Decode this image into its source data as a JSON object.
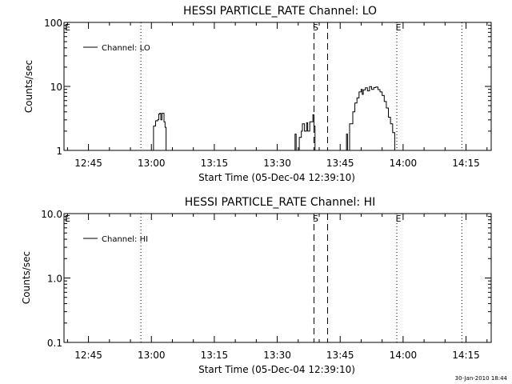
{
  "chart_data": [
    {
      "type": "line",
      "title": "HESSI PARTICLE_RATE Channel: LO",
      "xlabel": "Start Time (05-Dec-04 12:39:10)",
      "ylabel": "Counts/sec",
      "yscale": "log",
      "ylim": [
        1,
        100
      ],
      "yticks": [
        "1",
        "10",
        "100"
      ],
      "xlim": [
        "12:39:10",
        "14:21:00"
      ],
      "xticks": [
        "12:45",
        "13:00",
        "13:15",
        "13:30",
        "13:45",
        "14:00",
        "14:15"
      ],
      "grid": false,
      "legend_position": "top-left",
      "series": [
        {
          "name": "Channel: LO",
          "points": [
            [
              "13:00:15",
              1.0
            ],
            [
              "13:00:30",
              2.4
            ],
            [
              "13:01:00",
              2.9
            ],
            [
              "13:01:30",
              3.0
            ],
            [
              "13:01:45",
              3.7
            ],
            [
              "13:02:00",
              3.8
            ],
            [
              "13:02:15",
              3.0
            ],
            [
              "13:02:30",
              3.8
            ],
            [
              "13:03:00",
              2.8
            ],
            [
              "13:03:15",
              2.3
            ],
            [
              "13:03:30",
              1.0
            ]
          ]
        },
        {
          "name": "",
          "points": [
            [
              "13:34:00",
              1.0
            ],
            [
              "13:34:15",
              1.8
            ],
            [
              "13:34:30",
              1.0
            ],
            [
              "13:35:15",
              1.6
            ],
            [
              "13:35:45",
              2.0
            ],
            [
              "13:36:00",
              2.6
            ],
            [
              "13:36:30",
              2.0
            ],
            [
              "13:37:00",
              2.7
            ],
            [
              "13:37:15",
              2.0
            ],
            [
              "13:37:45",
              2.8
            ],
            [
              "13:38:30",
              3.6
            ],
            [
              "13:38:45",
              2.4
            ],
            [
              "13:39:00",
              1.0
            ]
          ]
        },
        {
          "name": "",
          "points": [
            [
              "13:46:15",
              1.0
            ],
            [
              "13:46:30",
              1.8
            ],
            [
              "13:46:45",
              1.0
            ],
            [
              "13:47:15",
              2.6
            ],
            [
              "13:48:00",
              4.0
            ],
            [
              "13:48:30",
              5.5
            ],
            [
              "13:49:00",
              6.6
            ],
            [
              "13:49:30",
              8.2
            ],
            [
              "13:50:00",
              9.0
            ],
            [
              "13:50:15",
              7.5
            ],
            [
              "13:50:30",
              8.8
            ],
            [
              "13:51:00",
              9.5
            ],
            [
              "13:51:30",
              8.5
            ],
            [
              "13:52:00",
              9.9
            ],
            [
              "13:52:30",
              9.0
            ],
            [
              "13:53:00",
              9.6
            ],
            [
              "13:53:30",
              9.8
            ],
            [
              "13:54:00",
              8.9
            ],
            [
              "13:54:30",
              8.2
            ],
            [
              "13:55:00",
              7.2
            ],
            [
              "13:55:30",
              5.8
            ],
            [
              "13:56:00",
              4.6
            ],
            [
              "13:56:30",
              3.3
            ],
            [
              "13:57:00",
              2.6
            ],
            [
              "13:57:30",
              1.9
            ],
            [
              "13:58:00",
              1.0
            ]
          ]
        }
      ],
      "vlines": [
        {
          "time": "12:57:30",
          "style": "dotted",
          "label": ""
        },
        {
          "time": "13:38:45",
          "style": "dashed",
          "label": "S"
        },
        {
          "time": "13:42:00",
          "style": "dashed",
          "label": ""
        },
        {
          "time": "13:58:30",
          "style": "dotted",
          "label": "E"
        },
        {
          "time": "14:14:00",
          "style": "dotted",
          "label": ""
        }
      ],
      "edge_label": "E"
    },
    {
      "type": "line",
      "title": "HESSI PARTICLE_RATE Channel: HI",
      "xlabel": "Start Time (05-Dec-04 12:39:10)",
      "ylabel": "Counts/sec",
      "yscale": "log",
      "ylim": [
        0.1,
        10
      ],
      "yticks": [
        "0.1",
        "1.0",
        "10.0"
      ],
      "xlim": [
        "12:39:10",
        "14:21:00"
      ],
      "xticks": [
        "12:45",
        "13:00",
        "13:15",
        "13:30",
        "13:45",
        "14:00",
        "14:15"
      ],
      "grid": false,
      "legend_position": "top-left",
      "series": [
        {
          "name": "Channel: HI",
          "points": []
        }
      ],
      "vlines": [
        {
          "time": "12:57:30",
          "style": "dotted",
          "label": ""
        },
        {
          "time": "13:38:45",
          "style": "dashed",
          "label": "S"
        },
        {
          "time": "13:42:00",
          "style": "dashed",
          "label": ""
        },
        {
          "time": "13:58:30",
          "style": "dotted",
          "label": "E"
        },
        {
          "time": "14:14:00",
          "style": "dotted",
          "label": ""
        }
      ],
      "edge_label": "E"
    }
  ],
  "footer": {
    "timestamp": "30-Jan-2010 18:44"
  }
}
